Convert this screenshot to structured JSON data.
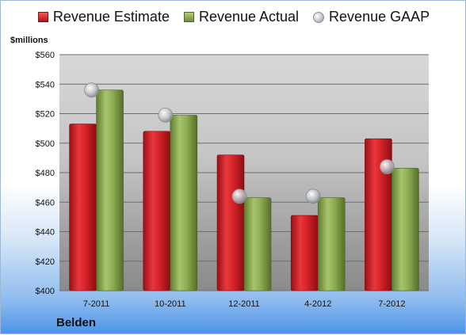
{
  "legend": {
    "estimate_label": "Revenue Estimate",
    "actual_label": "Revenue Actual",
    "gaap_label": "Revenue GAAP"
  },
  "units_label": "$millions",
  "company_label": "Belden",
  "colors": {
    "estimate": "#c81e24",
    "actual": "#8aab4e",
    "gaap": "#bfc3c9"
  },
  "chart_data": {
    "type": "bar",
    "categories": [
      "7-2011",
      "10-2011",
      "12-2011",
      "4-2012",
      "7-2012"
    ],
    "series": [
      {
        "name": "Revenue Estimate",
        "values": [
          513,
          508,
          492,
          451,
          503
        ]
      },
      {
        "name": "Revenue Actual",
        "values": [
          536,
          519,
          463,
          463,
          483
        ]
      },
      {
        "name": "Revenue GAAP",
        "values": [
          536,
          519,
          464,
          464,
          484
        ],
        "marker": "circle"
      }
    ],
    "ylabel": "$millions",
    "ylim": [
      400,
      560
    ],
    "yticks": [
      400,
      420,
      440,
      460,
      480,
      500,
      520,
      540,
      560
    ],
    "ytick_labels": [
      "$400",
      "$420",
      "$440",
      "$460",
      "$480",
      "$500",
      "$520",
      "$540",
      "$560"
    ],
    "grid": true
  }
}
